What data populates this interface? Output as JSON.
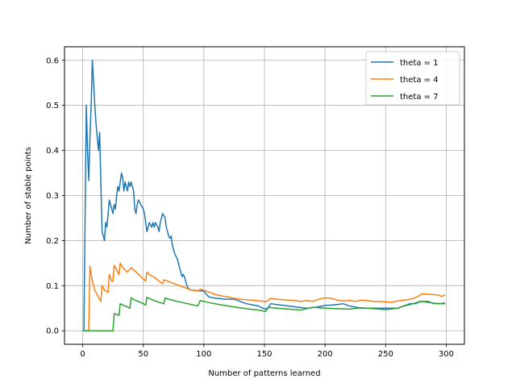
{
  "chart_data": {
    "type": "line",
    "title": "",
    "xlabel": "Number of patterns learned",
    "ylabel": "Number of stable points",
    "xlim": [
      -15,
      315
    ],
    "ylim": [
      -0.03,
      0.63
    ],
    "grid": true,
    "legend_position": "top-right",
    "x_ticks": [
      0,
      50,
      100,
      150,
      200,
      250,
      300
    ],
    "y_ticks": [
      0.0,
      0.1,
      0.2,
      0.3,
      0.4,
      0.5,
      0.6
    ],
    "x_tick_labels": [
      "0",
      "50",
      "100",
      "150",
      "200",
      "250",
      "300"
    ],
    "y_tick_labels": [
      "0.0",
      "0.1",
      "0.2",
      "0.3",
      "0.4",
      "0.5",
      "0.6"
    ],
    "series": [
      {
        "name": "theta = 1",
        "color": "#1f77b4",
        "points": [
          [
            0,
            0
          ],
          [
            1,
            0
          ],
          [
            2,
            0.25
          ],
          [
            3,
            0.5
          ],
          [
            4,
            0.4
          ],
          [
            5,
            0.333
          ],
          [
            6,
            0.43
          ],
          [
            7,
            0.5
          ],
          [
            8,
            0.6
          ],
          [
            9,
            0.55
          ],
          [
            10,
            0.5
          ],
          [
            11,
            0.46
          ],
          [
            12,
            0.43
          ],
          [
            13,
            0.4
          ],
          [
            14,
            0.44
          ],
          [
            15,
            0.33
          ],
          [
            16,
            0.22
          ],
          [
            17,
            0.21
          ],
          [
            18,
            0.2
          ],
          [
            19,
            0.24
          ],
          [
            20,
            0.23
          ],
          [
            21,
            0.26
          ],
          [
            22,
            0.29
          ],
          [
            23,
            0.28
          ],
          [
            24,
            0.27
          ],
          [
            25,
            0.26
          ],
          [
            26,
            0.28
          ],
          [
            27,
            0.27
          ],
          [
            28,
            0.3
          ],
          [
            29,
            0.32
          ],
          [
            30,
            0.31
          ],
          [
            31,
            0.33
          ],
          [
            32,
            0.35
          ],
          [
            33,
            0.34
          ],
          [
            34,
            0.31
          ],
          [
            35,
            0.33
          ],
          [
            36,
            0.32
          ],
          [
            37,
            0.31
          ],
          [
            38,
            0.33
          ],
          [
            39,
            0.32
          ],
          [
            40,
            0.33
          ],
          [
            41,
            0.32
          ],
          [
            42,
            0.31
          ],
          [
            43,
            0.27
          ],
          [
            44,
            0.26
          ],
          [
            45,
            0.28
          ],
          [
            46,
            0.29
          ],
          [
            47,
            0.285
          ],
          [
            48,
            0.28
          ],
          [
            49,
            0.275
          ],
          [
            50,
            0.27
          ],
          [
            51,
            0.26
          ],
          [
            52,
            0.24
          ],
          [
            53,
            0.22
          ],
          [
            54,
            0.23
          ],
          [
            55,
            0.24
          ],
          [
            56,
            0.235
          ],
          [
            57,
            0.23
          ],
          [
            58,
            0.24
          ],
          [
            59,
            0.23
          ],
          [
            60,
            0.24
          ],
          [
            61,
            0.235
          ],
          [
            62,
            0.23
          ],
          [
            63,
            0.22
          ],
          [
            64,
            0.24
          ],
          [
            65,
            0.25
          ],
          [
            66,
            0.26
          ],
          [
            67,
            0.255
          ],
          [
            68,
            0.25
          ],
          [
            69,
            0.23
          ],
          [
            70,
            0.22
          ],
          [
            71,
            0.21
          ],
          [
            72,
            0.205
          ],
          [
            73,
            0.21
          ],
          [
            74,
            0.19
          ],
          [
            75,
            0.18
          ],
          [
            76,
            0.17
          ],
          [
            77,
            0.165
          ],
          [
            78,
            0.16
          ],
          [
            79,
            0.15
          ],
          [
            80,
            0.14
          ],
          [
            81,
            0.13
          ],
          [
            82,
            0.12
          ],
          [
            83,
            0.125
          ],
          [
            84,
            0.12
          ],
          [
            85,
            0.11
          ],
          [
            86,
            0.1
          ],
          [
            87,
            0.095
          ],
          [
            88,
            0.092
          ],
          [
            90,
            0.09
          ],
          [
            95,
            0.089
          ],
          [
            100,
            0.088
          ],
          [
            104,
            0.075
          ],
          [
            110,
            0.072
          ],
          [
            118,
            0.07
          ],
          [
            125,
            0.07
          ],
          [
            135,
            0.06
          ],
          [
            145,
            0.055
          ],
          [
            150,
            0.048
          ],
          [
            153,
            0.05
          ],
          [
            155,
            0.06
          ],
          [
            160,
            0.058
          ],
          [
            170,
            0.055
          ],
          [
            178,
            0.052
          ],
          [
            185,
            0.05
          ],
          [
            192,
            0.052
          ],
          [
            200,
            0.056
          ],
          [
            210,
            0.058
          ],
          [
            215,
            0.06
          ],
          [
            220,
            0.055
          ],
          [
            230,
            0.05
          ],
          [
            240,
            0.05
          ],
          [
            250,
            0.05
          ],
          [
            260,
            0.05
          ],
          [
            265,
            0.055
          ],
          [
            270,
            0.06
          ],
          [
            275,
            0.06
          ],
          [
            278,
            0.065
          ],
          [
            285,
            0.065
          ],
          [
            290,
            0.06
          ],
          [
            295,
            0.06
          ],
          [
            299,
            0.06
          ]
        ]
      },
      {
        "name": "theta = 4",
        "color": "#ff7f0e",
        "points": [
          [
            0,
            0
          ],
          [
            2,
            0
          ],
          [
            4,
            0
          ],
          [
            5,
            0
          ],
          [
            6,
            0.143
          ],
          [
            7,
            0.125
          ],
          [
            8,
            0.11
          ],
          [
            9,
            0.1
          ],
          [
            10,
            0.09
          ],
          [
            12,
            0.08
          ],
          [
            13,
            0.075
          ],
          [
            14,
            0.07
          ],
          [
            15,
            0.065
          ],
          [
            16,
            0.1
          ],
          [
            17,
            0.095
          ],
          [
            18,
            0.09
          ],
          [
            20,
            0.087
          ],
          [
            21,
            0.085
          ],
          [
            22,
            0.125
          ],
          [
            24,
            0.11
          ],
          [
            25,
            0.11
          ],
          [
            26,
            0.145
          ],
          [
            28,
            0.135
          ],
          [
            30,
            0.125
          ],
          [
            31,
            0.15
          ],
          [
            33,
            0.14
          ],
          [
            35,
            0.135
          ],
          [
            37,
            0.13
          ],
          [
            40,
            0.14
          ],
          [
            42,
            0.135
          ],
          [
            45,
            0.128
          ],
          [
            48,
            0.12
          ],
          [
            50,
            0.115
          ],
          [
            52,
            0.11
          ],
          [
            53,
            0.13
          ],
          [
            55,
            0.125
          ],
          [
            58,
            0.12
          ],
          [
            60,
            0.117
          ],
          [
            63,
            0.11
          ],
          [
            66,
            0.104
          ],
          [
            67,
            0.113
          ],
          [
            70,
            0.11
          ],
          [
            75,
            0.105
          ],
          [
            80,
            0.1
          ],
          [
            85,
            0.095
          ],
          [
            90,
            0.09
          ],
          [
            95,
            0.088
          ],
          [
            97,
            0.092
          ],
          [
            100,
            0.09
          ],
          [
            105,
            0.085
          ],
          [
            110,
            0.08
          ],
          [
            115,
            0.077
          ],
          [
            120,
            0.075
          ],
          [
            125,
            0.072
          ],
          [
            130,
            0.07
          ],
          [
            140,
            0.068
          ],
          [
            150,
            0.065
          ],
          [
            152,
            0.065
          ],
          [
            155,
            0.072
          ],
          [
            160,
            0.07
          ],
          [
            170,
            0.068
          ],
          [
            175,
            0.067
          ],
          [
            180,
            0.065
          ],
          [
            185,
            0.067
          ],
          [
            190,
            0.065
          ],
          [
            195,
            0.07
          ],
          [
            200,
            0.073
          ],
          [
            205,
            0.072
          ],
          [
            210,
            0.068
          ],
          [
            215,
            0.066
          ],
          [
            220,
            0.067
          ],
          [
            225,
            0.065
          ],
          [
            230,
            0.068
          ],
          [
            235,
            0.067
          ],
          [
            240,
            0.065
          ],
          [
            245,
            0.065
          ],
          [
            250,
            0.064
          ],
          [
            255,
            0.063
          ],
          [
            260,
            0.066
          ],
          [
            265,
            0.068
          ],
          [
            270,
            0.07
          ],
          [
            275,
            0.074
          ],
          [
            278,
            0.078
          ],
          [
            280,
            0.082
          ],
          [
            285,
            0.081
          ],
          [
            290,
            0.08
          ],
          [
            294,
            0.079
          ],
          [
            296,
            0.076
          ],
          [
            298,
            0.078
          ],
          [
            299,
            0.08
          ]
        ]
      },
      {
        "name": "theta = 7",
        "color": "#2ca02c",
        "points": [
          [
            0,
            0
          ],
          [
            5,
            0
          ],
          [
            10,
            0
          ],
          [
            15,
            0
          ],
          [
            20,
            0
          ],
          [
            25,
            0
          ],
          [
            26,
            0.038
          ],
          [
            28,
            0.036
          ],
          [
            30,
            0.034
          ],
          [
            31,
            0.06
          ],
          [
            33,
            0.057
          ],
          [
            36,
            0.054
          ],
          [
            39,
            0.05
          ],
          [
            40,
            0.073
          ],
          [
            43,
            0.068
          ],
          [
            46,
            0.065
          ],
          [
            50,
            0.06
          ],
          [
            52,
            0.057
          ],
          [
            53,
            0.074
          ],
          [
            56,
            0.07
          ],
          [
            60,
            0.066
          ],
          [
            63,
            0.063
          ],
          [
            67,
            0.06
          ],
          [
            68,
            0.073
          ],
          [
            72,
            0.069
          ],
          [
            80,
            0.064
          ],
          [
            90,
            0.058
          ],
          [
            95,
            0.055
          ],
          [
            97,
            0.067
          ],
          [
            105,
            0.062
          ],
          [
            115,
            0.057
          ],
          [
            125,
            0.053
          ],
          [
            135,
            0.049
          ],
          [
            145,
            0.046
          ],
          [
            150,
            0.043
          ],
          [
            151,
            0.043
          ],
          [
            153,
            0.052
          ],
          [
            160,
            0.05
          ],
          [
            170,
            0.048
          ],
          [
            180,
            0.046
          ],
          [
            190,
            0.052
          ],
          [
            200,
            0.05
          ],
          [
            210,
            0.049
          ],
          [
            220,
            0.048
          ],
          [
            230,
            0.051
          ],
          [
            240,
            0.049
          ],
          [
            250,
            0.047
          ],
          [
            260,
            0.05
          ],
          [
            265,
            0.055
          ],
          [
            270,
            0.058
          ],
          [
            275,
            0.062
          ],
          [
            280,
            0.065
          ],
          [
            285,
            0.063
          ],
          [
            290,
            0.061
          ],
          [
            295,
            0.06
          ],
          [
            299,
            0.062
          ]
        ]
      }
    ]
  }
}
